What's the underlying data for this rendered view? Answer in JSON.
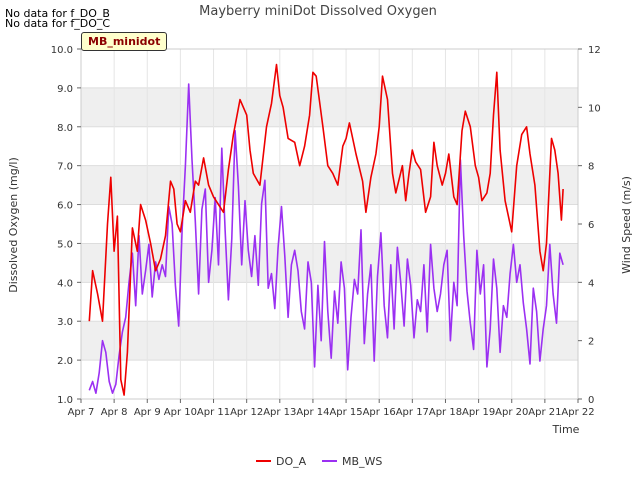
{
  "no_data_notes": [
    "No data for f_DO_B",
    "No data for f_DO_C"
  ],
  "site_badge": "MB_minidot",
  "chart_data": {
    "type": "line",
    "title": "Mayberry miniDot Dissolved Oxygen",
    "xlabel": "Time",
    "ylabel": "Dissolved Oxygen (mg/l)",
    "y2label": "Wind Speed (m/s)",
    "x_ticks": [
      "Apr 7",
      "Apr 8",
      "Apr 9",
      "Apr 10",
      "Apr 11",
      "Apr 12",
      "Apr 13",
      "Apr 14",
      "Apr 15",
      "Apr 16",
      "Apr 17",
      "Apr 18",
      "Apr 19",
      "Apr 20",
      "Apr 21",
      "Apr 22"
    ],
    "xlim": [
      7,
      22
    ],
    "ylim": [
      1.0,
      10.0
    ],
    "y_ticks": [
      "1.0",
      "2.0",
      "3.0",
      "4.0",
      "5.0",
      "6.0",
      "7.0",
      "8.0",
      "9.0",
      "10.0"
    ],
    "y2lim": [
      0,
      12
    ],
    "y2_ticks": [
      "0",
      "2",
      "4",
      "6",
      "8",
      "10",
      "12"
    ],
    "grid": true,
    "legend_position": "bottom",
    "series": [
      {
        "name": "DO_A",
        "axis": "left",
        "color": "#ee0000",
        "x": [
          7.25,
          7.35,
          7.5,
          7.65,
          7.8,
          7.9,
          8.0,
          8.1,
          8.2,
          8.3,
          8.4,
          8.55,
          8.7,
          8.8,
          8.95,
          9.1,
          9.25,
          9.4,
          9.55,
          9.7,
          9.8,
          9.9,
          10.0,
          10.15,
          10.3,
          10.45,
          10.55,
          10.7,
          10.85,
          11.0,
          11.15,
          11.3,
          11.45,
          11.6,
          11.8,
          12.0,
          12.1,
          12.2,
          12.4,
          12.6,
          12.75,
          12.9,
          13.0,
          13.1,
          13.25,
          13.45,
          13.6,
          13.75,
          13.9,
          14.0,
          14.1,
          14.3,
          14.45,
          14.6,
          14.75,
          14.9,
          15.0,
          15.1,
          15.3,
          15.5,
          15.6,
          15.75,
          15.9,
          16.0,
          16.1,
          16.25,
          16.4,
          16.5,
          16.7,
          16.8,
          16.9,
          17.0,
          17.1,
          17.25,
          17.4,
          17.55,
          17.65,
          17.75,
          17.9,
          18.0,
          18.1,
          18.25,
          18.35,
          18.5,
          18.6,
          18.75,
          18.9,
          19.0,
          19.1,
          19.25,
          19.35,
          19.45,
          19.55,
          19.65,
          19.8,
          19.9,
          20.0,
          20.15,
          20.3,
          20.45,
          20.55,
          20.7,
          20.85,
          20.95,
          21.05,
          21.2,
          21.3,
          21.4,
          21.5,
          21.55
        ],
        "values": [
          3.0,
          4.3,
          3.7,
          3.0,
          5.5,
          6.7,
          4.8,
          5.7,
          1.5,
          1.1,
          2.2,
          5.4,
          4.8,
          6.0,
          5.6,
          5.0,
          4.3,
          4.6,
          5.2,
          6.6,
          6.4,
          5.5,
          5.3,
          6.1,
          5.8,
          6.6,
          6.5,
          7.2,
          6.5,
          6.2,
          6.0,
          5.8,
          6.9,
          7.8,
          8.7,
          8.3,
          7.4,
          6.8,
          6.5,
          8.0,
          8.6,
          9.6,
          8.8,
          8.5,
          7.7,
          7.6,
          7.0,
          7.5,
          8.3,
          9.4,
          9.3,
          8.0,
          7.0,
          6.8,
          6.5,
          7.5,
          7.7,
          8.1,
          7.3,
          6.6,
          5.8,
          6.7,
          7.3,
          8.0,
          9.3,
          8.7,
          6.8,
          6.3,
          7.0,
          6.1,
          6.8,
          7.4,
          7.1,
          6.9,
          5.8,
          6.2,
          7.6,
          7.0,
          6.5,
          6.8,
          7.3,
          6.2,
          6.0,
          7.9,
          8.4,
          8.0,
          7.0,
          6.7,
          6.1,
          6.3,
          6.8,
          8.3,
          9.4,
          7.4,
          6.1,
          5.7,
          5.3,
          7.0,
          7.8,
          8.0,
          7.3,
          6.5,
          4.8,
          4.3,
          5.0,
          7.7,
          7.4,
          6.8,
          5.6,
          6.4
        ]
      },
      {
        "name": "MB_WS",
        "axis": "right",
        "color": "#9b30f2",
        "x": [
          7.25,
          7.35,
          7.45,
          7.55,
          7.65,
          7.75,
          7.85,
          7.95,
          8.05,
          8.15,
          8.25,
          8.35,
          8.45,
          8.55,
          8.65,
          8.75,
          8.85,
          8.95,
          9.05,
          9.15,
          9.25,
          9.35,
          9.45,
          9.55,
          9.65,
          9.75,
          9.85,
          9.95,
          10.05,
          10.15,
          10.25,
          10.35,
          10.45,
          10.55,
          10.65,
          10.75,
          10.85,
          10.95,
          11.05,
          11.15,
          11.25,
          11.35,
          11.45,
          11.55,
          11.65,
          11.75,
          11.85,
          11.95,
          12.05,
          12.15,
          12.25,
          12.35,
          12.45,
          12.55,
          12.65,
          12.75,
          12.85,
          12.95,
          13.05,
          13.15,
          13.25,
          13.35,
          13.45,
          13.55,
          13.65,
          13.75,
          13.85,
          13.95,
          14.05,
          14.15,
          14.25,
          14.35,
          14.45,
          14.55,
          14.65,
          14.75,
          14.85,
          14.95,
          15.05,
          15.15,
          15.25,
          15.35,
          15.45,
          15.55,
          15.65,
          15.75,
          15.85,
          15.95,
          16.05,
          16.15,
          16.25,
          16.35,
          16.45,
          16.55,
          16.65,
          16.75,
          16.85,
          16.95,
          17.05,
          17.15,
          17.25,
          17.35,
          17.45,
          17.55,
          17.65,
          17.75,
          17.85,
          17.95,
          18.05,
          18.15,
          18.25,
          18.35,
          18.45,
          18.55,
          18.65,
          18.75,
          18.85,
          18.95,
          19.05,
          19.15,
          19.25,
          19.35,
          19.45,
          19.55,
          19.65,
          19.75,
          19.85,
          19.95,
          20.05,
          20.15,
          20.25,
          20.35,
          20.45,
          20.55,
          20.65,
          20.75,
          20.85,
          20.95,
          21.05,
          21.15,
          21.25,
          21.35,
          21.45,
          21.55
        ],
        "values": [
          0.3,
          0.6,
          0.2,
          0.9,
          2.0,
          1.6,
          0.6,
          0.2,
          0.5,
          1.5,
          2.3,
          2.8,
          4.0,
          5.0,
          3.2,
          5.6,
          3.6,
          4.4,
          5.3,
          3.5,
          4.7,
          4.1,
          4.6,
          4.2,
          6.6,
          6.0,
          3.9,
          2.5,
          5.8,
          8.0,
          10.8,
          8.2,
          6.1,
          3.6,
          6.5,
          7.2,
          4.0,
          5.1,
          6.9,
          4.6,
          8.6,
          5.8,
          3.4,
          5.5,
          9.2,
          7.3,
          4.6,
          6.8,
          5.1,
          4.2,
          5.6,
          3.9,
          6.7,
          7.5,
          3.8,
          4.3,
          3.1,
          5.2,
          6.6,
          4.9,
          2.8,
          4.6,
          5.1,
          4.4,
          3.0,
          2.4,
          4.7,
          4.0,
          1.1,
          3.9,
          2.0,
          5.4,
          3.0,
          1.4,
          3.7,
          2.6,
          4.7,
          3.8,
          1.0,
          2.8,
          4.1,
          3.6,
          5.8,
          1.9,
          3.6,
          4.6,
          1.3,
          4.2,
          5.7,
          3.2,
          2.1,
          4.6,
          2.4,
          5.2,
          4.0,
          2.5,
          4.8,
          3.9,
          2.1,
          3.4,
          3.0,
          4.6,
          2.3,
          5.3,
          3.8,
          3.0,
          3.6,
          4.6,
          5.1,
          2.0,
          4.0,
          3.2,
          8.2,
          5.6,
          3.7,
          2.6,
          1.7,
          5.1,
          3.6,
          4.6,
          1.1,
          2.4,
          4.8,
          3.8,
          1.6,
          3.2,
          2.8,
          4.3,
          5.3,
          4.0,
          4.6,
          3.3,
          2.4,
          1.2,
          3.8,
          3.0,
          1.3,
          2.4,
          3.2,
          5.3,
          3.6,
          2.6,
          5.0,
          4.6
        ]
      }
    ]
  }
}
